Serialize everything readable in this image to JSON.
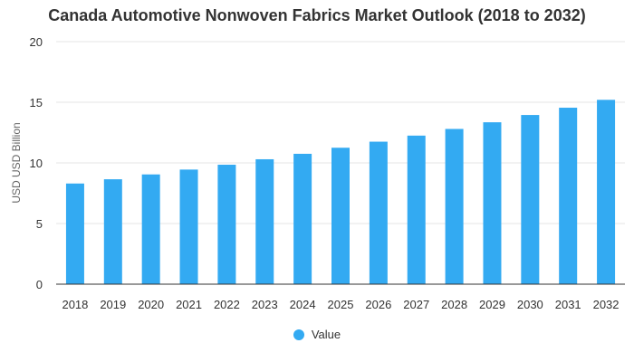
{
  "chart_data": {
    "type": "bar",
    "title": "Canada Automotive Nonwoven Fabrics Market Outlook (2018 to 2032)",
    "xlabel": "",
    "ylabel": "USD USD Billion",
    "categories": [
      "2018",
      "2019",
      "2020",
      "2021",
      "2022",
      "2023",
      "2024",
      "2025",
      "2026",
      "2027",
      "2028",
      "2029",
      "2030",
      "2031",
      "2032"
    ],
    "series": [
      {
        "name": "Value",
        "values": [
          8.3,
          8.65,
          9.05,
          9.45,
          9.85,
          10.3,
          10.75,
          11.25,
          11.75,
          12.25,
          12.8,
          13.35,
          13.95,
          14.55,
          15.2
        ]
      }
    ],
    "ylim": [
      0,
      20
    ],
    "yticks": [
      0,
      5,
      10,
      15,
      20
    ],
    "grid": true,
    "legend_position": "bottom-center",
    "colors": {
      "bar": "#33aaf2",
      "grid": "#e6e6e6",
      "axis": "#333333"
    }
  }
}
